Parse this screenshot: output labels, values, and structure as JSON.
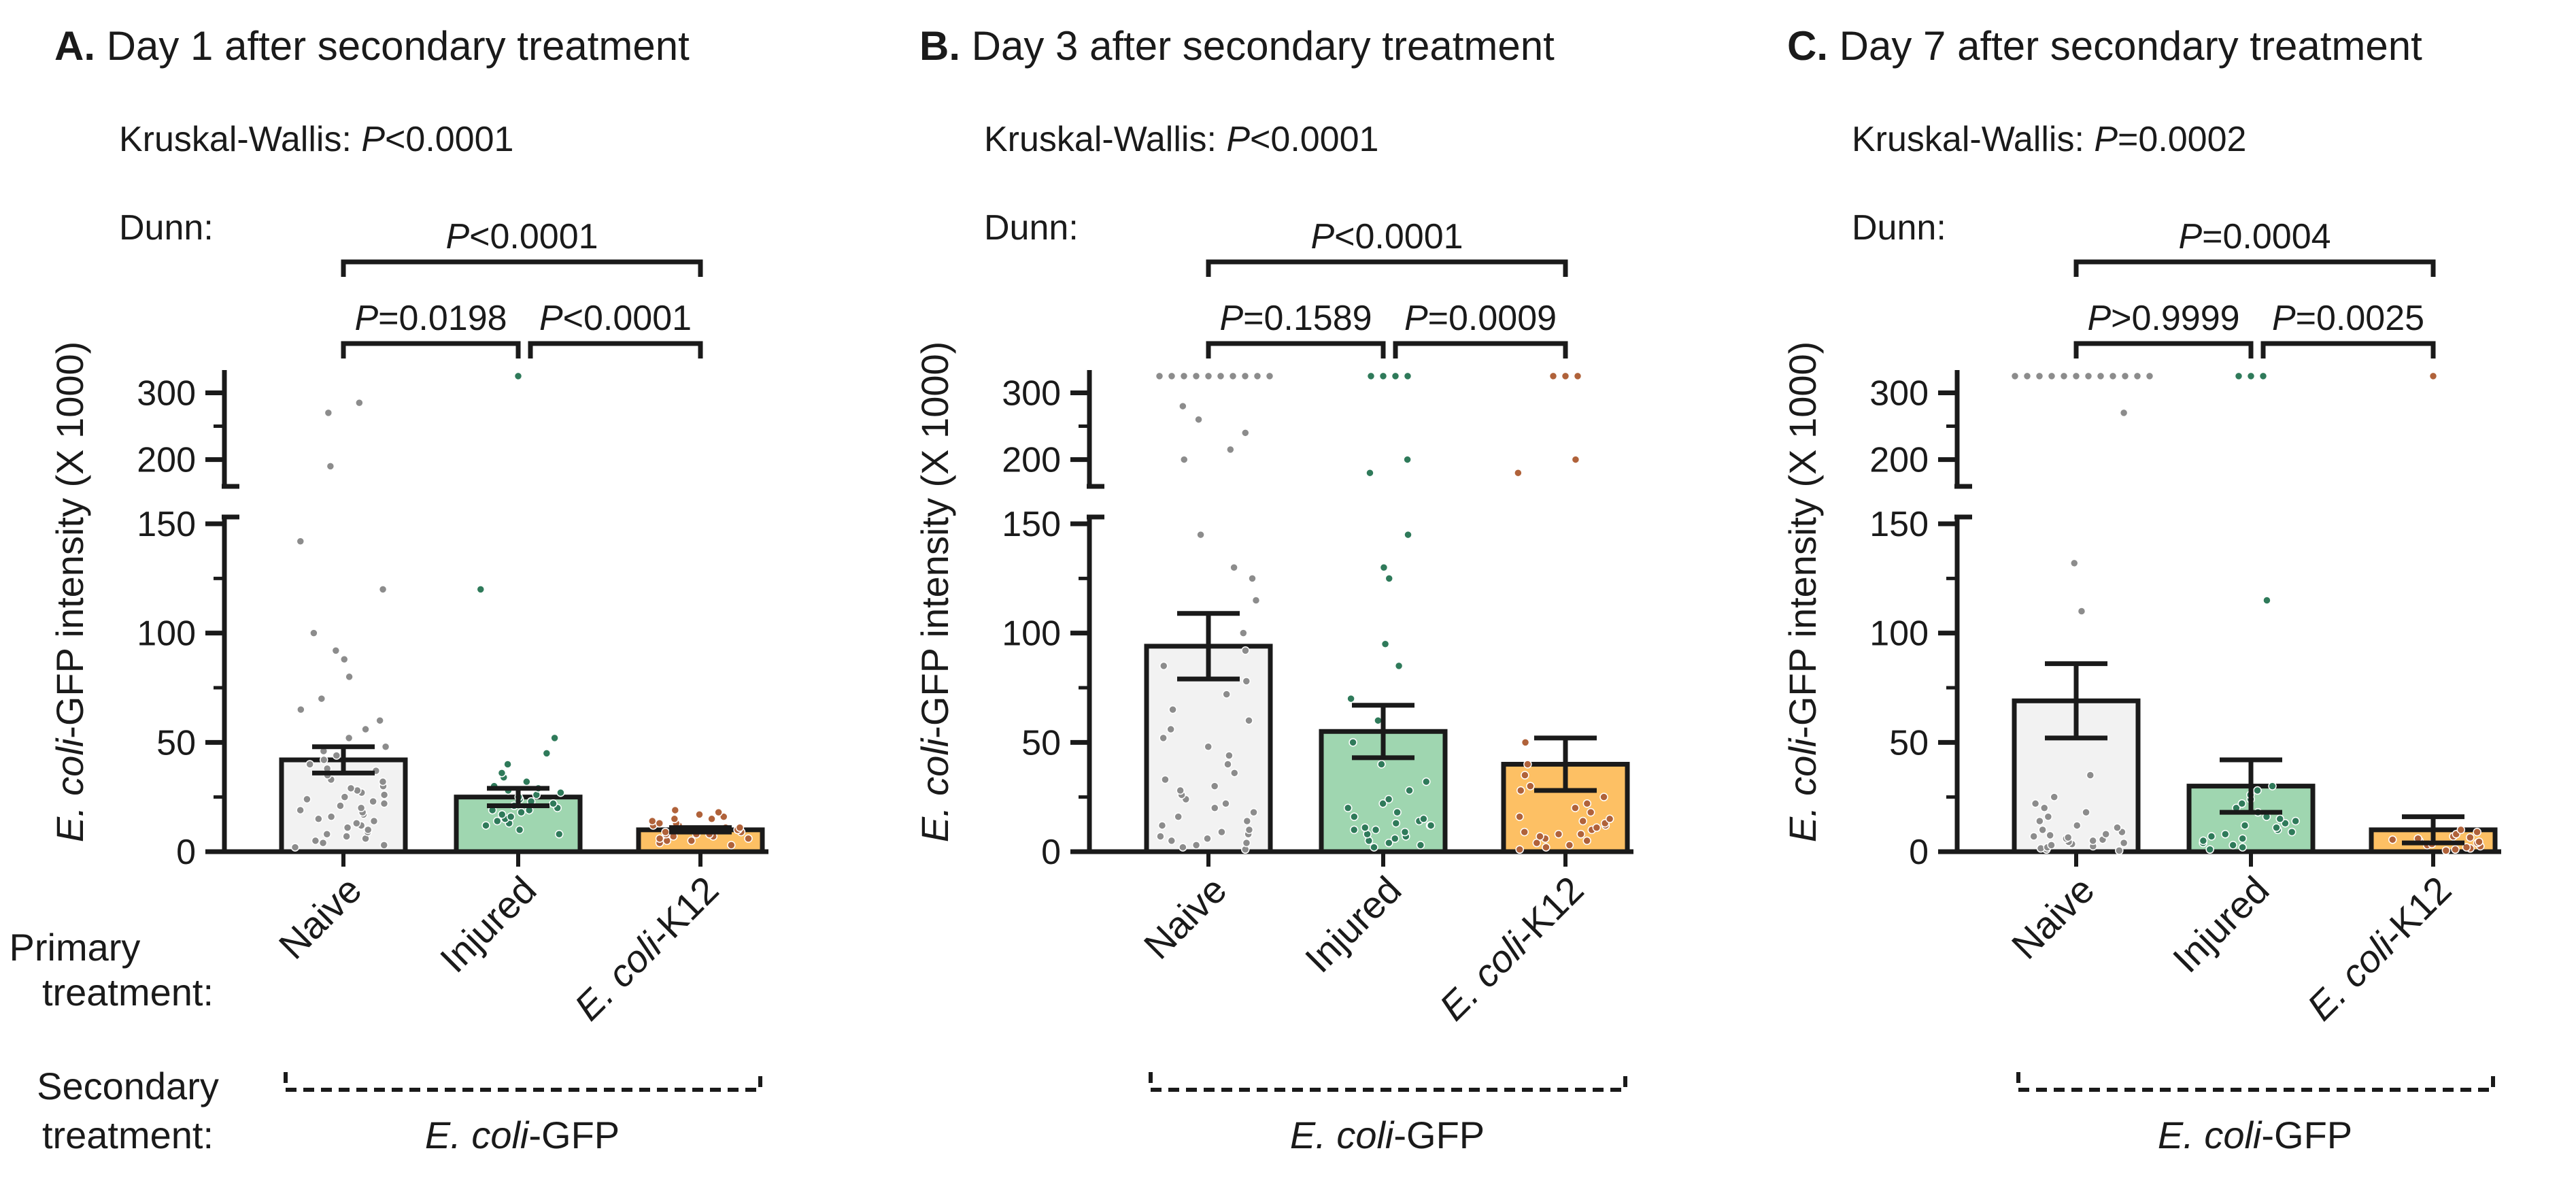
{
  "labels": {
    "primary_label_line1": "Primary",
    "primary_label_line2": "treatment:",
    "secondary_label_line1": "Secondary",
    "secondary_label_line2": "treatment:",
    "categories": [
      {
        "plain": "Naive",
        "italic_part": "",
        "rest": ""
      },
      {
        "plain": "Injured",
        "italic_part": "",
        "rest": ""
      },
      {
        "plain": "",
        "italic_part": "E. coli",
        "rest": "-K12"
      }
    ],
    "secondary_value": {
      "italic_part": "E. coli",
      "rest": "-GFP"
    },
    "ylabel": {
      "italic_part": "E. coli",
      "rest": "-GFP intensity (X 1000)"
    },
    "kw_prefix": "Kruskal-Wallis:",
    "dunn_prefix": "Dunn:",
    "p_symbol": "P"
  },
  "colors": {
    "naive": "#f2f2f2",
    "injured": "#9fd6b0",
    "k12": "#fdc064",
    "dot_naive": "#8c8c8c",
    "dot_injured": "#2f7a5a",
    "dot_k12": "#b0623a"
  },
  "chart_data": [
    {
      "type": "bar",
      "panel_letter": "A.",
      "title": "Day 1 after secondary treatment",
      "kruskal_wallis": "<0.0001",
      "dunn": {
        "naive_vs_k12": "<0.0001",
        "naive_vs_injured": "=0.0198",
        "injured_vs_k12": "<0.0001"
      },
      "categories": [
        "Naive",
        "Injured",
        "E. coli-K12"
      ],
      "means": [
        42,
        25,
        10
      ],
      "sem": [
        6,
        4,
        1
      ],
      "yaxis": {
        "lower_ticks": [
          0,
          50,
          100,
          150
        ],
        "upper_ticks": [
          200,
          300
        ],
        "lower_range": [
          0,
          150
        ],
        "upper_range": [
          170,
          330
        ],
        "broken": true
      },
      "points": [
        [
          2,
          3,
          4,
          5,
          6,
          7,
          8,
          9,
          10,
          11,
          12,
          13,
          14,
          15,
          16,
          17,
          18,
          19,
          20,
          21,
          22,
          23,
          24,
          25,
          26,
          27,
          28,
          29,
          30,
          32,
          33,
          35,
          37,
          38,
          40,
          42,
          44,
          46,
          48,
          52,
          56,
          60,
          65,
          70,
          80,
          88,
          92,
          100,
          120,
          142,
          190,
          270,
          285
        ],
        [
          8,
          10,
          12,
          13,
          14,
          15,
          16,
          17,
          18,
          19,
          19,
          20,
          21,
          22,
          22,
          23,
          24,
          25,
          26,
          27,
          28,
          29,
          30,
          32,
          34,
          36,
          40,
          45,
          52,
          120,
          325
        ],
        [
          3,
          4,
          5,
          5,
          6,
          6,
          7,
          7,
          8,
          8,
          8,
          9,
          9,
          10,
          10,
          10,
          11,
          11,
          12,
          12,
          13,
          13,
          14,
          15,
          15,
          16,
          17,
          18,
          19
        ]
      ]
    },
    {
      "type": "bar",
      "panel_letter": "B.",
      "title": "Day 3 after secondary treatment",
      "kruskal_wallis": "<0.0001",
      "dunn": {
        "naive_vs_k12": "<0.0001",
        "naive_vs_injured": "=0.1589",
        "injured_vs_k12": "=0.0009"
      },
      "categories": [
        "Naive",
        "Injured",
        "E. coli-K12"
      ],
      "means": [
        94,
        55,
        40
      ],
      "sem": [
        15,
        12,
        12
      ],
      "yaxis": {
        "lower_ticks": [
          0,
          50,
          100,
          150
        ],
        "upper_ticks": [
          200,
          300
        ],
        "lower_range": [
          0,
          150
        ],
        "upper_range": [
          170,
          330
        ],
        "broken": true
      },
      "points": [
        [
          1,
          2,
          3,
          4,
          5,
          6,
          7,
          8,
          9,
          10,
          12,
          14,
          16,
          18,
          20,
          22,
          24,
          26,
          28,
          30,
          33,
          36,
          40,
          44,
          48,
          52,
          56,
          60,
          65,
          72,
          78,
          85,
          92,
          100,
          115,
          125,
          130,
          145,
          200,
          215,
          240,
          260,
          280,
          325,
          325,
          325,
          325,
          325,
          325,
          325,
          325,
          325,
          325
        ],
        [
          2,
          3,
          4,
          5,
          6,
          7,
          8,
          9,
          10,
          10,
          11,
          12,
          12,
          13,
          14,
          15,
          16,
          18,
          20,
          22,
          24,
          28,
          32,
          40,
          50,
          60,
          70,
          85,
          95,
          125,
          130,
          145,
          180,
          200,
          325,
          325,
          325,
          325
        ],
        [
          1,
          2,
          3,
          4,
          5,
          6,
          7,
          8,
          8,
          9,
          10,
          11,
          12,
          13,
          14,
          15,
          16,
          18,
          20,
          22,
          25,
          28,
          30,
          35,
          40,
          50,
          180,
          200,
          325,
          325,
          325
        ]
      ]
    },
    {
      "type": "bar",
      "panel_letter": "C.",
      "title": "Day 7 after secondary treatment",
      "kruskal_wallis": "=0.0002",
      "dunn": {
        "naive_vs_k12": "=0.0004",
        "naive_vs_injured": ">0.9999",
        "injured_vs_k12": "=0.0025"
      },
      "categories": [
        "Naive",
        "Injured",
        "E. coli-K12"
      ],
      "means": [
        69,
        30,
        10
      ],
      "sem": [
        17,
        12,
        6
      ],
      "yaxis": {
        "lower_ticks": [
          0,
          50,
          100,
          150
        ],
        "upper_ticks": [
          200,
          300
        ],
        "lower_range": [
          0,
          150
        ],
        "upper_range": [
          170,
          330
        ],
        "broken": true
      },
      "points": [
        [
          0.5,
          1,
          1.5,
          2,
          2.5,
          3,
          3.5,
          4,
          4.5,
          5,
          5.5,
          6,
          6.5,
          7,
          7.5,
          8,
          9,
          10,
          11,
          12,
          14,
          16,
          18,
          20,
          22,
          25,
          35,
          110,
          132,
          270,
          325,
          325,
          325,
          325,
          325,
          325,
          325,
          325,
          325,
          325,
          325,
          325
        ],
        [
          1,
          2,
          3,
          4,
          5,
          6,
          7,
          8,
          9,
          10,
          11,
          12,
          13,
          14,
          15,
          16,
          18,
          20,
          22,
          24,
          26,
          28,
          30,
          115,
          325,
          325,
          325
        ],
        [
          0.5,
          1,
          1.5,
          2,
          2.5,
          3,
          3.5,
          4,
          4.5,
          5,
          5.5,
          6,
          6.5,
          7,
          8,
          9,
          10,
          325
        ]
      ]
    }
  ]
}
